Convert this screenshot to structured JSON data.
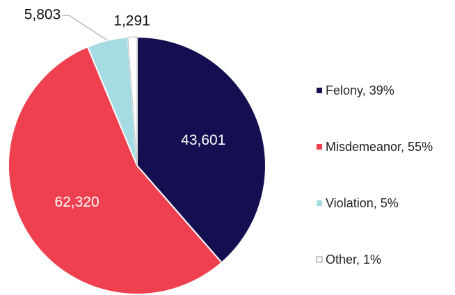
{
  "chart_data": {
    "type": "pie",
    "categories": [
      "Felony, 39%",
      "Misdemeanor, 55%",
      "Violation, 5%",
      "Other, 1%"
    ],
    "values": [
      43601,
      62320,
      5803,
      1291
    ],
    "value_labels": [
      "43,601",
      "62,320",
      "5,803",
      "1,291"
    ],
    "colors": [
      "#140f50",
      "#ef4050",
      "#a5dbe3",
      "#ffffff"
    ],
    "legend": "right"
  }
}
